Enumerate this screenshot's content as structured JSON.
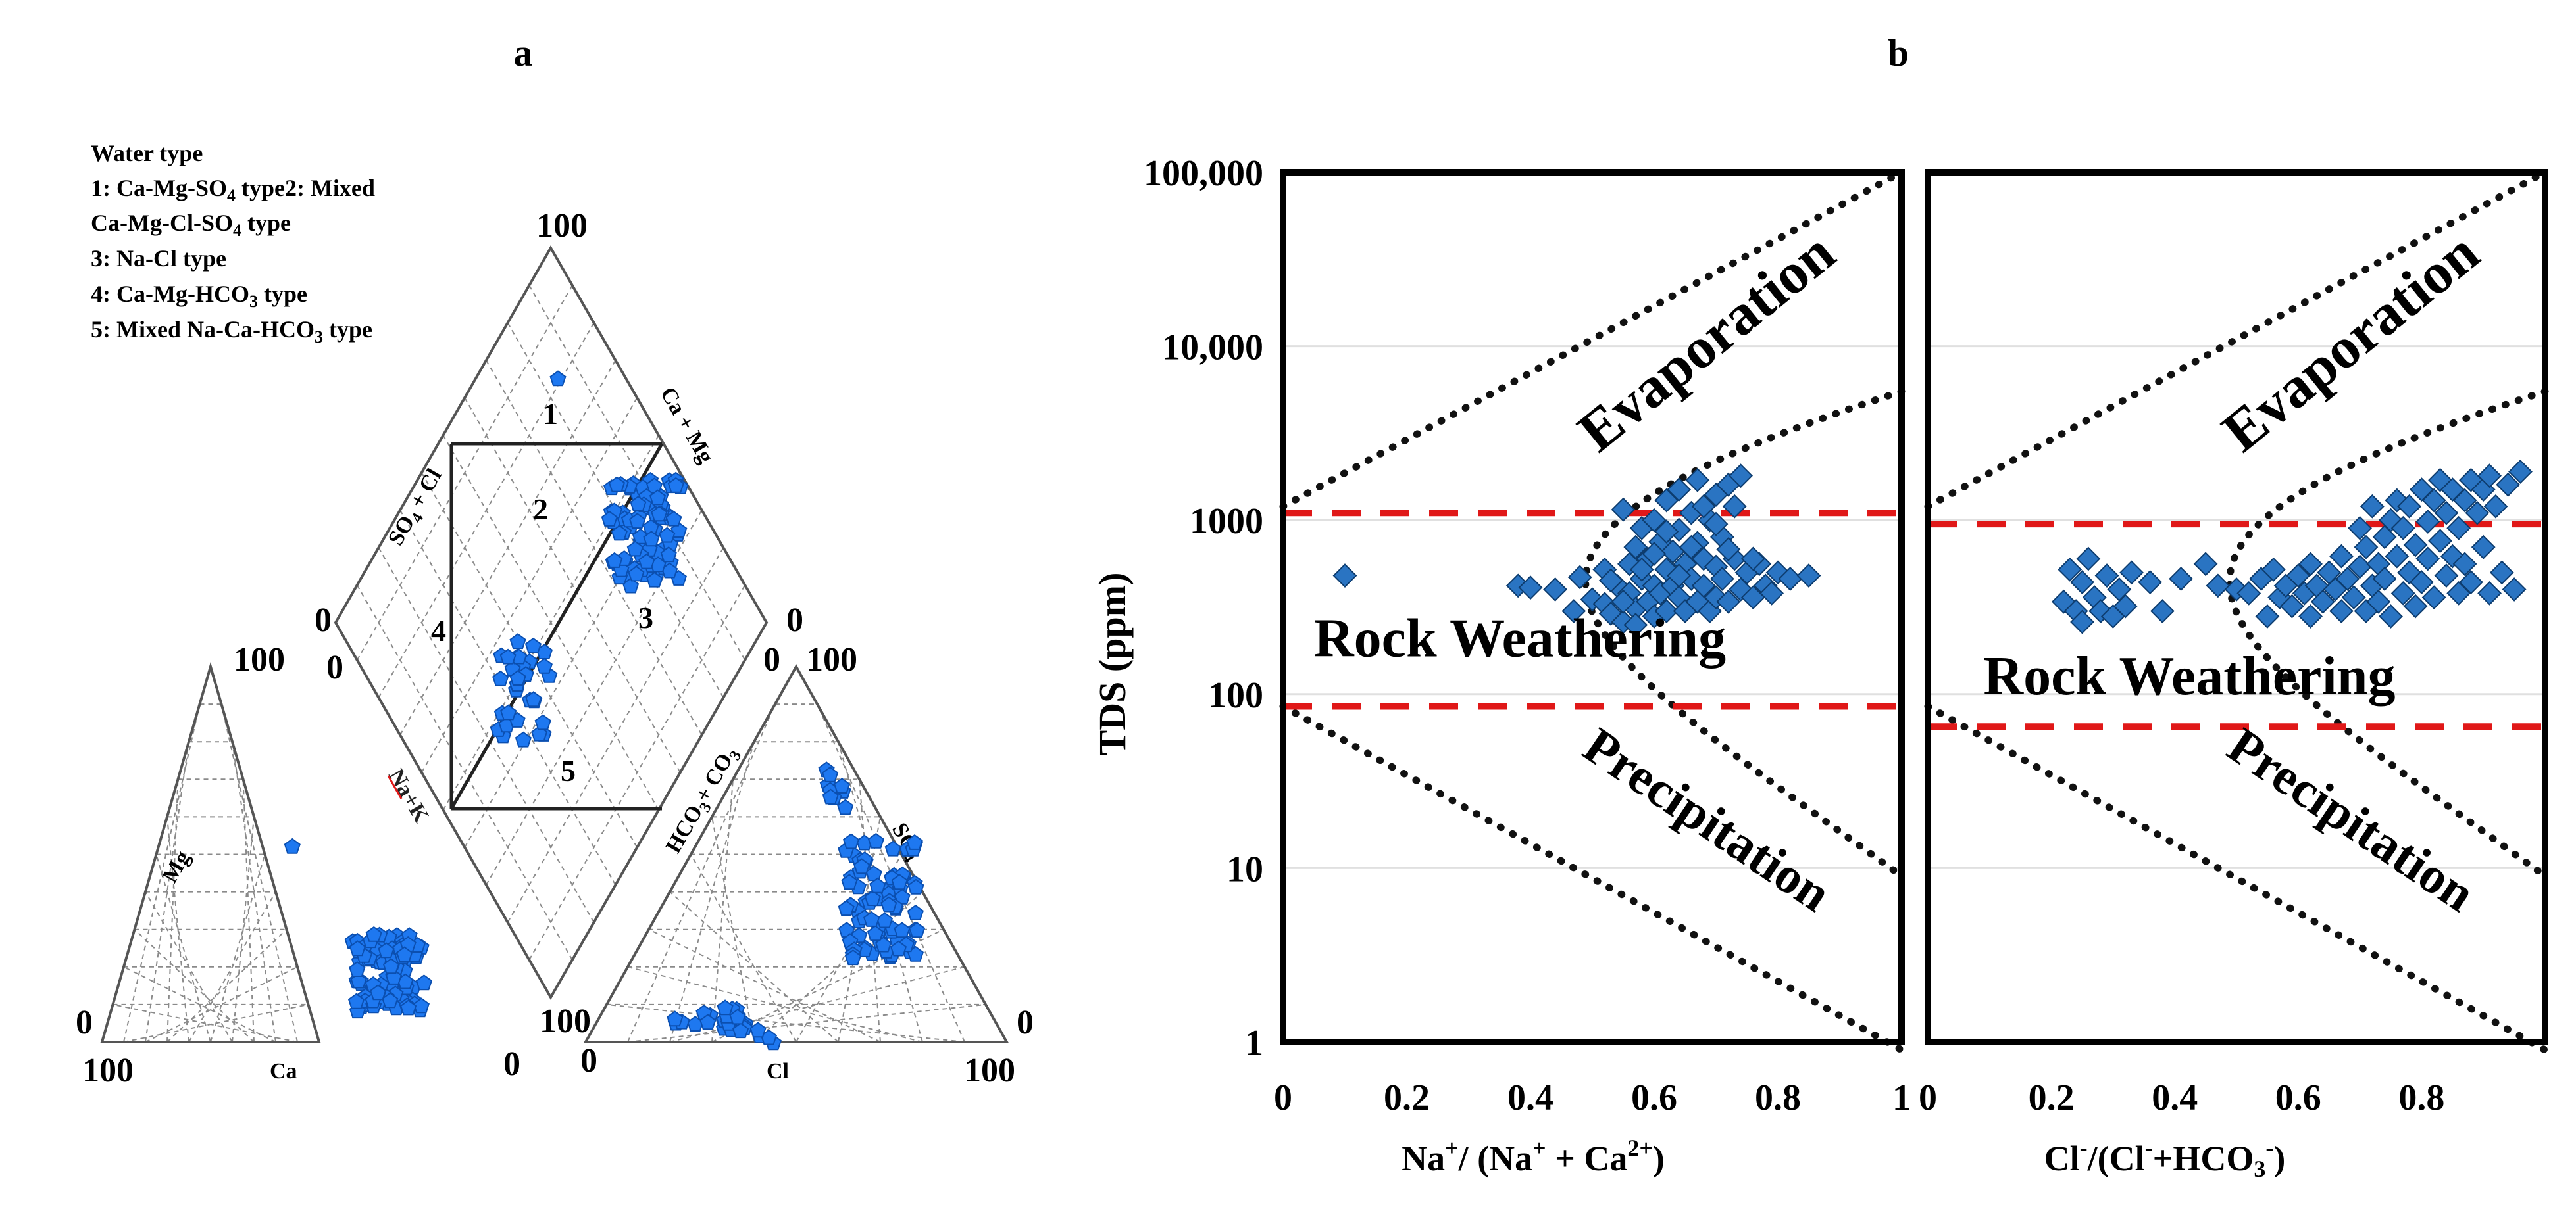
{
  "panel_labels": {
    "a": "a",
    "b": "b"
  },
  "colors": {
    "marker": "#1e78f0",
    "marker_edge": "#0b4fb0",
    "diamond": "#2a74c2",
    "diamond_edge": "#0d3c6e",
    "red": "#e01818"
  },
  "piper": {
    "legend": {
      "title": "Water type",
      "line1a": "1: Ca-Mg-SO",
      "line1b": "4",
      "line1c": " type2: Mixed",
      "line2a": "Ca-Mg-Cl-SO",
      "line2b": "4",
      "line2c": " type",
      "line3": "3: Na-Cl type",
      "line4a": "4: Ca-Mg-HCO",
      "line4b": "3",
      "line4c": " type",
      "line5a": "5: Mixed Na-Ca-HCO",
      "line5b": "3",
      "line5c": " type"
    },
    "numbers": {
      "n100": "100",
      "n0": "0"
    },
    "axis_labels": {
      "mg": "Mg",
      "ca": "Ca",
      "nak": "Na+K",
      "cl": "Cl",
      "so4_main": "SO",
      "so4_sub": "4",
      "hco3_a": "HCO",
      "hco3_b": "3",
      "hco3_c": "+ CO",
      "hco3_d": "3",
      "so4cl_a": "SO",
      "so4cl_b": "4",
      "so4cl_c": " + Cl",
      "camg": "Ca + Mg"
    },
    "zones": [
      "1",
      "2",
      "3",
      "4",
      "5"
    ]
  },
  "chart_data": [
    {
      "type": "scatter",
      "title": "",
      "xlabel_parts": [
        "Na",
        "+",
        "/ (Na",
        "+",
        " + Ca",
        "2+",
        ")"
      ],
      "ylabel": "TDS (ppm)",
      "y_scale": "log",
      "ylim": [
        1,
        100000
      ],
      "xlim": [
        0,
        1
      ],
      "yticks": [
        1,
        10,
        100,
        1000,
        10000,
        100000
      ],
      "ytick_labels": [
        "1",
        "10",
        "100",
        "1000",
        "10,000",
        "100,000"
      ],
      "xticks": [
        0,
        0.2,
        0.4,
        0.6,
        0.8,
        1
      ],
      "xtick_labels": [
        "0",
        "0.2",
        "0.4",
        "0.6",
        "0.8",
        "1"
      ],
      "region_labels": {
        "evaporation": "Evaporation",
        "rock": "Rock Weathering",
        "precipitation": "Precipitation"
      },
      "red_lines": [
        1100,
        85
      ],
      "series": [
        {
          "name": "samples",
          "points": [
            [
              0.1,
              480
            ],
            [
              0.38,
              420
            ],
            [
              0.4,
              410
            ],
            [
              0.44,
              400
            ],
            [
              0.47,
              300
            ],
            [
              0.48,
              470
            ],
            [
              0.5,
              350
            ],
            [
              0.52,
              520
            ],
            [
              0.52,
              330
            ],
            [
              0.53,
              290
            ],
            [
              0.54,
              420
            ],
            [
              0.55,
              1150
            ],
            [
              0.55,
              260
            ],
            [
              0.56,
              560
            ],
            [
              0.56,
              380
            ],
            [
              0.57,
              700
            ],
            [
              0.57,
              310
            ],
            [
              0.58,
              460
            ],
            [
              0.58,
              900
            ],
            [
              0.59,
              340
            ],
            [
              0.59,
              600
            ],
            [
              0.6,
              1000
            ],
            [
              0.6,
              420
            ],
            [
              0.6,
              280
            ],
            [
              0.61,
              750
            ],
            [
              0.61,
              380
            ],
            [
              0.62,
              520
            ],
            [
              0.62,
              1300
            ],
            [
              0.62,
              300
            ],
            [
              0.63,
              660
            ],
            [
              0.63,
              420
            ],
            [
              0.64,
              880
            ],
            [
              0.64,
              360
            ],
            [
              0.64,
              1500
            ],
            [
              0.65,
              560
            ],
            [
              0.65,
              300
            ],
            [
              0.66,
              1100
            ],
            [
              0.66,
              460
            ],
            [
              0.67,
              740
            ],
            [
              0.67,
              340
            ],
            [
              0.67,
              1700
            ],
            [
              0.68,
              600
            ],
            [
              0.68,
              420
            ],
            [
              0.69,
              1000
            ],
            [
              0.69,
              300
            ],
            [
              0.7,
              540
            ],
            [
              0.7,
              1400
            ],
            [
              0.7,
              360
            ],
            [
              0.71,
              800
            ],
            [
              0.71,
              460
            ],
            [
              0.72,
              1600
            ],
            [
              0.72,
              340
            ],
            [
              0.73,
              600
            ],
            [
              0.73,
              1200
            ],
            [
              0.74,
              400
            ],
            [
              0.74,
              1800
            ],
            [
              0.75,
              500
            ],
            [
              0.76,
              360
            ],
            [
              0.77,
              560
            ],
            [
              0.78,
              420
            ],
            [
              0.8,
              500
            ],
            [
              0.82,
              460
            ],
            [
              0.85,
              480
            ],
            [
              0.58,
              520
            ],
            [
              0.6,
              640
            ],
            [
              0.62,
              860
            ],
            [
              0.66,
              700
            ],
            [
              0.68,
              1200
            ],
            [
              0.7,
              950
            ],
            [
              0.64,
              480
            ],
            [
              0.72,
              680
            ],
            [
              0.76,
              600
            ],
            [
              0.79,
              380
            ],
            [
              0.55,
              340
            ],
            [
              0.53,
              450
            ],
            [
              0.57,
              250
            ]
          ]
        }
      ]
    },
    {
      "type": "scatter",
      "title": "",
      "xlabel_parts": [
        "Cl",
        "-",
        "/(Cl",
        "-",
        "+HCO",
        "3",
        "-",
        ")"
      ],
      "ylabel": "",
      "y_scale": "log",
      "ylim": [
        1,
        100000
      ],
      "xlim": [
        0,
        1
      ],
      "xticks": [
        0,
        0.2,
        0.4,
        0.6,
        0.8
      ],
      "xtick_labels": [
        "0",
        "0.2",
        "0.4",
        "0.6",
        "0.8"
      ],
      "region_labels": {
        "evaporation": "Evaporation",
        "rock": "Rock Weathering",
        "precipitation": "Precipitation"
      },
      "red_lines": [
        950,
        65
      ],
      "series": [
        {
          "name": "samples",
          "points": [
            [
              0.22,
              340
            ],
            [
              0.23,
              520
            ],
            [
              0.24,
              300
            ],
            [
              0.25,
              440
            ],
            [
              0.25,
              260
            ],
            [
              0.26,
              600
            ],
            [
              0.27,
              360
            ],
            [
              0.28,
              300
            ],
            [
              0.29,
              480
            ],
            [
              0.3,
              280
            ],
            [
              0.31,
              400
            ],
            [
              0.32,
              320
            ],
            [
              0.33,
              500
            ],
            [
              0.36,
              440
            ],
            [
              0.38,
              300
            ],
            [
              0.41,
              460
            ],
            [
              0.45,
              560
            ],
            [
              0.47,
              420
            ],
            [
              0.5,
              400
            ],
            [
              0.52,
              380
            ],
            [
              0.54,
              460
            ],
            [
              0.55,
              280
            ],
            [
              0.56,
              520
            ],
            [
              0.57,
              360
            ],
            [
              0.58,
              420
            ],
            [
              0.59,
              320
            ],
            [
              0.6,
              480
            ],
            [
              0.61,
              380
            ],
            [
              0.62,
              560
            ],
            [
              0.62,
              280
            ],
            [
              0.63,
              420
            ],
            [
              0.64,
              340
            ],
            [
              0.65,
              500
            ],
            [
              0.66,
              400
            ],
            [
              0.67,
              300
            ],
            [
              0.67,
              620
            ],
            [
              0.68,
              460
            ],
            [
              0.69,
              360
            ],
            [
              0.7,
              540
            ],
            [
              0.7,
              900
            ],
            [
              0.71,
              300
            ],
            [
              0.71,
              700
            ],
            [
              0.72,
              420
            ],
            [
              0.72,
              1200
            ],
            [
              0.73,
              560
            ],
            [
              0.73,
              340
            ],
            [
              0.74,
              800
            ],
            [
              0.74,
              460
            ],
            [
              0.75,
              1000
            ],
            [
              0.75,
              280
            ],
            [
              0.76,
              620
            ],
            [
              0.76,
              1300
            ],
            [
              0.77,
              380
            ],
            [
              0.77,
              900
            ],
            [
              0.78,
              500
            ],
            [
              0.78,
              1200
            ],
            [
              0.79,
              720
            ],
            [
              0.79,
              320
            ],
            [
              0.8,
              1500
            ],
            [
              0.8,
              440
            ],
            [
              0.81,
              980
            ],
            [
              0.81,
              600
            ],
            [
              0.82,
              1300
            ],
            [
              0.82,
              360
            ],
            [
              0.83,
              760
            ],
            [
              0.83,
              1700
            ],
            [
              0.84,
              480
            ],
            [
              0.84,
              1100
            ],
            [
              0.85,
              1500
            ],
            [
              0.85,
              620
            ],
            [
              0.86,
              900
            ],
            [
              0.86,
              380
            ],
            [
              0.87,
              1300
            ],
            [
              0.87,
              560
            ],
            [
              0.88,
              1700
            ],
            [
              0.88,
              440
            ],
            [
              0.89,
              1100
            ],
            [
              0.9,
              1500
            ],
            [
              0.9,
              700
            ],
            [
              0.91,
              1800
            ],
            [
              0.91,
              380
            ],
            [
              0.92,
              1200
            ],
            [
              0.93,
              500
            ],
            [
              0.94,
              1600
            ],
            [
              0.95,
              400
            ],
            [
              0.96,
              1900
            ]
          ]
        }
      ]
    }
  ]
}
